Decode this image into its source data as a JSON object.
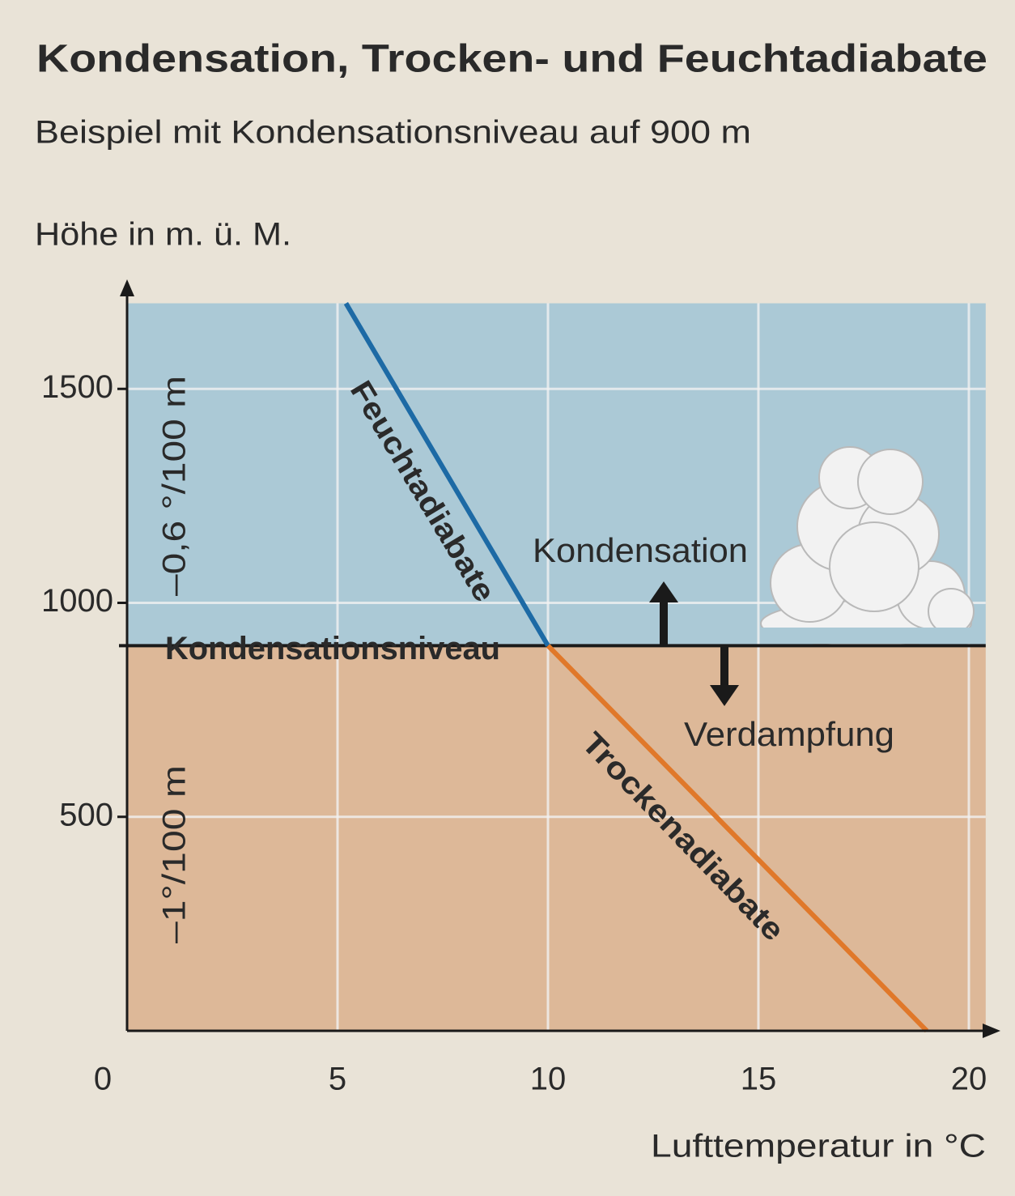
{
  "chart_data": {
    "type": "line",
    "title": "Kondensation, Trocken- und Feuchtadiabate",
    "subtitle": "Beispiel mit Kondensationsniveau auf 900 m",
    "y_label": "Höhe in m. ü. M.",
    "x_label": "Lufttemperatur in °C",
    "xlim": [
      0,
      20.4
    ],
    "ylim": [
      0,
      1700
    ],
    "xticks": [
      0,
      5,
      10,
      15,
      20
    ],
    "yticks": [
      500,
      1000,
      1500
    ],
    "grid": true,
    "condensation_level": {
      "value": 900,
      "label": "Kondensationsniveau",
      "above_color": "#abc9d6",
      "below_color": "#ddb898"
    },
    "annotations": {
      "above": "Kondensation",
      "below": "Verdampfung",
      "rate_above": "–0,6 °/100 m",
      "rate_below": "–1°/100 m"
    },
    "series": [
      {
        "name": "Feuchtadiabate",
        "color": "#1d6aa5",
        "x": [
          10,
          5.2
        ],
        "values": [
          900,
          1700
        ]
      },
      {
        "name": "Trockenadiabate",
        "color": "#e0782a",
        "x": [
          19,
          10
        ],
        "values": [
          0,
          900
        ]
      }
    ]
  }
}
